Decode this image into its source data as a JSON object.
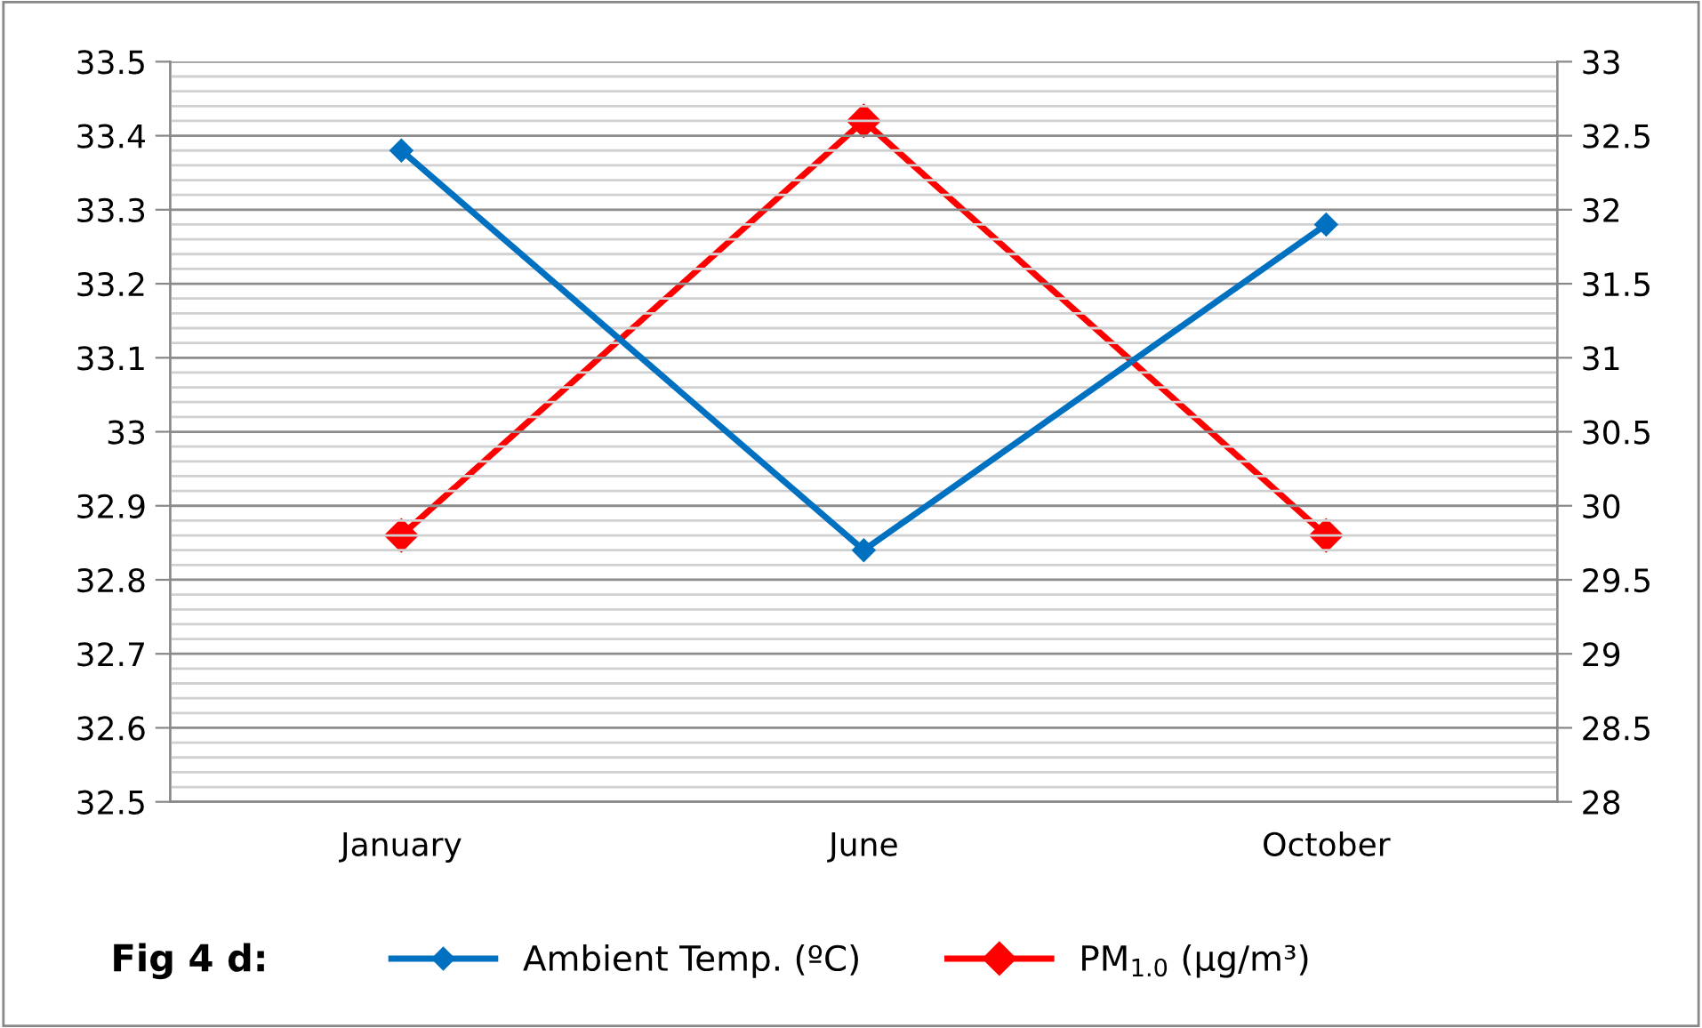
{
  "chart_data": {
    "type": "line",
    "categories": [
      "January",
      "June",
      "October"
    ],
    "series": [
      {
        "name": "Ambient Temp. (ºC)",
        "color": "#0070c0",
        "values": [
          33.38,
          32.84,
          33.28
        ],
        "marker": "diamond"
      },
      {
        "name": "PM$_{1.0}$ (µg/m³)",
        "color": "#ff0000",
        "values": [
          29.8,
          32.6,
          29.8
        ],
        "axis": "y2",
        "marker": "diamond"
      }
    ],
    "ylim": [
      32.5,
      33.5
    ],
    "yticks": [
      32.5,
      32.6,
      32.7,
      32.8,
      32.9,
      33,
      33.1,
      33.2,
      33.3,
      33.4,
      33.5
    ],
    "y2lim": [
      28,
      33
    ],
    "y2ticks": [
      28,
      28.5,
      29,
      29.5,
      30,
      30.5,
      31,
      31.5,
      32,
      32.5,
      33
    ],
    "grid": "y",
    "legend": "bottom",
    "line_style": "solid",
    "annotations": [
      "Fig 4 d:"
    ]
  }
}
